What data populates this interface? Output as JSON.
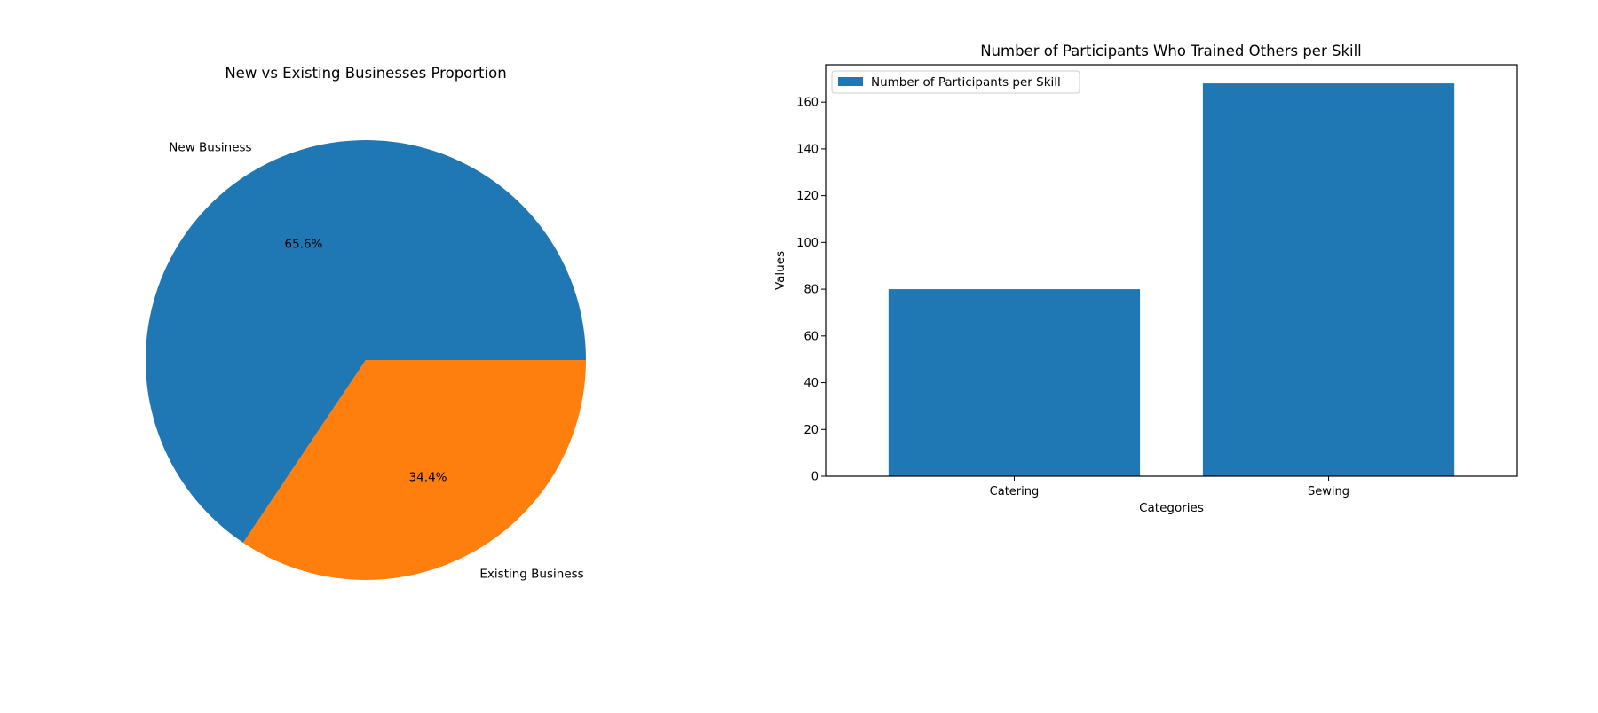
{
  "chart_data": [
    {
      "type": "pie",
      "title": "New vs Existing Businesses Proportion",
      "labels": [
        "New Business",
        "Existing Business"
      ],
      "values": [
        65.6,
        34.4
      ],
      "percent_labels": [
        "65.6%",
        "34.4%"
      ],
      "colors": [
        "#1f77b4",
        "#ff7f0e"
      ],
      "start_angle_deg": 0,
      "direction": "counterclockwise"
    },
    {
      "type": "bar",
      "title": "Number of Participants Who Trained Others per Skill",
      "categories": [
        "Catering",
        "Sewing"
      ],
      "series": [
        {
          "name": "Number of Participants per Skill",
          "values": [
            80,
            168
          ],
          "color": "#1f77b4"
        }
      ],
      "xlabel": "Categories",
      "ylabel": "Values",
      "ylim": [
        0,
        176
      ],
      "yticks": [
        0,
        20,
        40,
        60,
        80,
        100,
        120,
        140,
        160
      ],
      "grid": false,
      "legend": "upper-left"
    }
  ]
}
